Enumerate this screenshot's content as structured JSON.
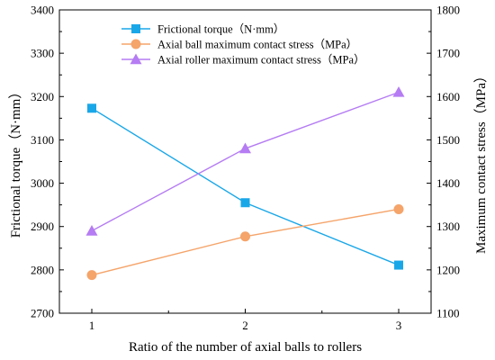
{
  "chart_data": {
    "type": "line",
    "x": [
      1,
      2,
      3
    ],
    "xticks": [
      "1",
      "2",
      "3"
    ],
    "xlabel": "Ratio of the number of axial balls to rollers",
    "ylabel_left": "Frictional torque（N·mm）",
    "ylabel_right": "Maximum contact stress（MPa）",
    "ylim_left": [
      2700,
      3400
    ],
    "yticks_left": [
      "2700",
      "2800",
      "2900",
      "3000",
      "3100",
      "3200",
      "3300",
      "3400"
    ],
    "ylim_right": [
      1100,
      1800
    ],
    "yticks_right": [
      "1100",
      "1200",
      "1300",
      "1400",
      "1500",
      "1600",
      "1700",
      "1800"
    ],
    "legend_position": "top-center",
    "series": [
      {
        "name": "Frictional torque（N·mm）",
        "axis": "left",
        "marker": "square",
        "color": "#1aa7e8",
        "values": [
          3173,
          2955,
          2811
        ]
      },
      {
        "name": "Axial ball maximum contact stress（MPa）",
        "axis": "right",
        "marker": "circle",
        "color": "#f5a46a",
        "values": [
          1188,
          1277,
          1340
        ]
      },
      {
        "name": "Axial roller maximum contact stress（MPa）",
        "axis": "right",
        "marker": "triangle",
        "color": "#b57cf3",
        "values": [
          1290,
          1480,
          1610
        ]
      }
    ]
  }
}
